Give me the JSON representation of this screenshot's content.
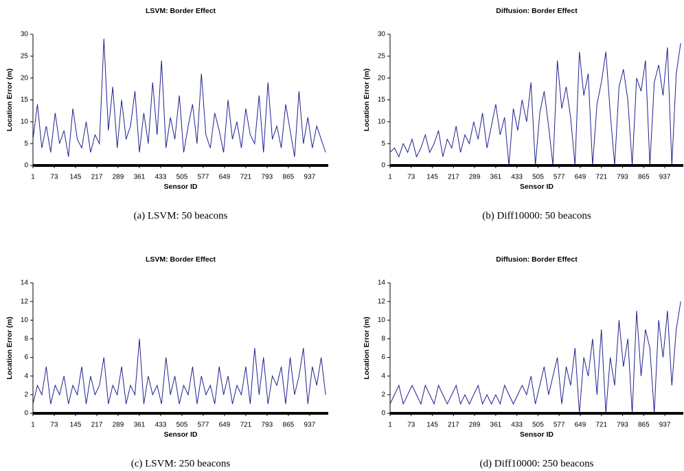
{
  "chart_data": [
    {
      "type": "line",
      "title": "LSVM: Border Effect",
      "xlabel": "Sensor ID",
      "ylabel": "Location Error (m)",
      "caption": "(a) LSVM: 50 beacons",
      "color": "#1f1f8f",
      "x": [
        1,
        16,
        31,
        46,
        61,
        76,
        91,
        106,
        121,
        136,
        151,
        166,
        181,
        196,
        211,
        226,
        241,
        256,
        271,
        286,
        301,
        316,
        331,
        346,
        361,
        376,
        391,
        406,
        421,
        436,
        451,
        466,
        481,
        496,
        511,
        526,
        541,
        556,
        571,
        586,
        601,
        616,
        631,
        646,
        661,
        676,
        691,
        706,
        721,
        736,
        751,
        766,
        781,
        796,
        811,
        826,
        841,
        856,
        871,
        886,
        901,
        916,
        931,
        946,
        961,
        976,
        991
      ],
      "values": [
        6,
        14,
        4,
        9,
        3,
        12,
        5,
        8,
        2,
        13,
        6,
        4,
        10,
        3,
        7,
        5,
        29,
        8,
        18,
        4,
        15,
        6,
        9,
        17,
        3,
        12,
        5,
        19,
        7,
        24,
        4,
        11,
        6,
        16,
        3,
        9,
        14,
        5,
        21,
        7,
        4,
        12,
        8,
        3,
        15,
        6,
        10,
        4,
        13,
        7,
        5,
        16,
        3,
        19,
        6,
        9,
        4,
        14,
        8,
        2,
        17,
        5,
        11,
        4,
        9,
        6,
        3
      ],
      "xlim": [
        1,
        1000
      ],
      "xticks": [
        1,
        73,
        145,
        217,
        289,
        361,
        433,
        505,
        577,
        649,
        721,
        793,
        865,
        937
      ],
      "ylim": [
        0,
        30
      ],
      "yticks": [
        0,
        5,
        10,
        15,
        20,
        25,
        30
      ]
    },
    {
      "type": "line",
      "title": "Diffusion: Border Effect",
      "xlabel": "Sensor ID",
      "ylabel": "Location Error (m)",
      "caption": "(b) Diff10000: 50 beacons",
      "color": "#1f1f8f",
      "x": [
        1,
        16,
        31,
        46,
        61,
        76,
        91,
        106,
        121,
        136,
        151,
        166,
        181,
        196,
        211,
        226,
        241,
        256,
        271,
        286,
        301,
        316,
        331,
        346,
        361,
        376,
        391,
        406,
        421,
        436,
        451,
        466,
        481,
        496,
        511,
        526,
        541,
        556,
        571,
        586,
        601,
        616,
        631,
        646,
        661,
        676,
        691,
        706,
        721,
        736,
        751,
        766,
        781,
        796,
        811,
        826,
        841,
        856,
        871,
        886,
        901,
        916,
        931,
        946,
        961,
        976,
        991
      ],
      "values": [
        3,
        4,
        2,
        5,
        3,
        6,
        2,
        4,
        7,
        3,
        5,
        8,
        2,
        6,
        4,
        9,
        3,
        7,
        5,
        10,
        6,
        12,
        4,
        9,
        14,
        7,
        11,
        0,
        13,
        8,
        15,
        10,
        19,
        0,
        12,
        17,
        9,
        0,
        24,
        13,
        18,
        11,
        0,
        26,
        16,
        21,
        0,
        14,
        19,
        26,
        12,
        0,
        18,
        22,
        15,
        0,
        20,
        17,
        24,
        0,
        19,
        23,
        16,
        27,
        0,
        21,
        28
      ],
      "xlim": [
        1,
        1000
      ],
      "xticks": [
        1,
        73,
        145,
        217,
        289,
        361,
        433,
        505,
        577,
        649,
        721,
        793,
        865,
        937
      ],
      "ylim": [
        0,
        30
      ],
      "yticks": [
        0,
        5,
        10,
        15,
        20,
        25,
        30
      ]
    },
    {
      "type": "line",
      "title": "LSVM: Border Effect",
      "xlabel": "Sensor ID",
      "ylabel": "Location Error (m)",
      "caption": "(c) LSVM: 250 beacons",
      "color": "#1f1f8f",
      "x": [
        1,
        16,
        31,
        46,
        61,
        76,
        91,
        106,
        121,
        136,
        151,
        166,
        181,
        196,
        211,
        226,
        241,
        256,
        271,
        286,
        301,
        316,
        331,
        346,
        361,
        376,
        391,
        406,
        421,
        436,
        451,
        466,
        481,
        496,
        511,
        526,
        541,
        556,
        571,
        586,
        601,
        616,
        631,
        646,
        661,
        676,
        691,
        706,
        721,
        736,
        751,
        766,
        781,
        796,
        811,
        826,
        841,
        856,
        871,
        886,
        901,
        916,
        931,
        946,
        961,
        976,
        991
      ],
      "values": [
        1,
        3,
        2,
        5,
        1,
        3,
        2,
        4,
        1,
        3,
        2,
        5,
        1,
        4,
        2,
        3,
        6,
        1,
        3,
        2,
        5,
        1,
        3,
        2,
        8,
        1,
        4,
        2,
        3,
        1,
        6,
        2,
        4,
        1,
        3,
        2,
        5,
        1,
        4,
        2,
        3,
        1,
        5,
        2,
        4,
        1,
        3,
        2,
        5,
        1,
        7,
        2,
        6,
        1,
        4,
        3,
        5,
        1,
        6,
        2,
        4,
        7,
        1,
        5,
        3,
        6,
        2
      ],
      "xlim": [
        1,
        1000
      ],
      "xticks": [
        1,
        73,
        145,
        217,
        289,
        361,
        433,
        505,
        577,
        649,
        721,
        793,
        865,
        937
      ],
      "ylim": [
        0,
        14
      ],
      "yticks": [
        0,
        2,
        4,
        6,
        8,
        10,
        12,
        14
      ]
    },
    {
      "type": "line",
      "title": "Diffusion: Border Effect",
      "xlabel": "Sensor ID",
      "ylabel": "Location Error (m)",
      "caption": "(d) Diff10000: 250 beacons",
      "color": "#1f1f8f",
      "x": [
        1,
        16,
        31,
        46,
        61,
        76,
        91,
        106,
        121,
        136,
        151,
        166,
        181,
        196,
        211,
        226,
        241,
        256,
        271,
        286,
        301,
        316,
        331,
        346,
        361,
        376,
        391,
        406,
        421,
        436,
        451,
        466,
        481,
        496,
        511,
        526,
        541,
        556,
        571,
        586,
        601,
        616,
        631,
        646,
        661,
        676,
        691,
        706,
        721,
        736,
        751,
        766,
        781,
        796,
        811,
        826,
        841,
        856,
        871,
        886,
        901,
        916,
        931,
        946,
        961,
        976,
        991
      ],
      "values": [
        1,
        2,
        3,
        1,
        2,
        3,
        2,
        1,
        3,
        2,
        1,
        3,
        2,
        1,
        2,
        3,
        1,
        2,
        1,
        2,
        3,
        1,
        2,
        1,
        2,
        1,
        3,
        2,
        1,
        2,
        3,
        2,
        4,
        1,
        3,
        5,
        2,
        4,
        6,
        1,
        5,
        3,
        7,
        0,
        6,
        4,
        8,
        2,
        9,
        0,
        6,
        3,
        10,
        5,
        8,
        0,
        11,
        4,
        9,
        7,
        0,
        10,
        6,
        11,
        3,
        9,
        12
      ],
      "xlim": [
        1,
        1000
      ],
      "xticks": [
        1,
        73,
        145,
        217,
        289,
        361,
        433,
        505,
        577,
        649,
        721,
        793,
        865,
        937
      ],
      "ylim": [
        0,
        14
      ],
      "yticks": [
        0,
        2,
        4,
        6,
        8,
        10,
        12,
        14
      ]
    }
  ]
}
